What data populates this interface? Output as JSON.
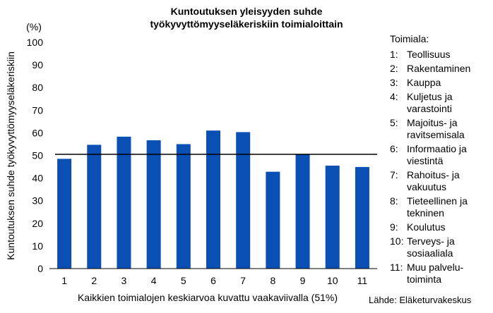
{
  "chart_data": {
    "type": "bar",
    "title_lines": [
      "Kuntoutuksen yleisyyden suhde",
      "työkyvyttömyyseläkeriskiin toimialoittain"
    ],
    "ylabel": "Kuntoutuksen suhde työkyvyttömyyseläkeriskiin",
    "yunit": "(%)",
    "xlabel": "Kaikkien toimialojen keskiarvoa kuvattu vaakaviivalla (51%)",
    "categories": [
      "1",
      "2",
      "3",
      "4",
      "5",
      "6",
      "7",
      "8",
      "9",
      "10",
      "11"
    ],
    "values": [
      48.5,
      54.7,
      58.3,
      56.7,
      55.0,
      61.0,
      60.3,
      42.8,
      50.5,
      45.5,
      44.9
    ],
    "reference_line": 50.5,
    "ylim": [
      0,
      100
    ],
    "yticks": [
      0,
      10,
      20,
      30,
      40,
      50,
      60,
      70,
      80,
      90,
      100
    ],
    "bar_color": "#0a4fb4",
    "grid": false
  },
  "legend": {
    "title": "Toimiala:",
    "items": [
      {
        "num": "1:",
        "label": "Teollisuus"
      },
      {
        "num": "2:",
        "label": "Rakentaminen"
      },
      {
        "num": "3:",
        "label": "Kauppa"
      },
      {
        "num": "4:",
        "label": "Kuljetus ja varastointi"
      },
      {
        "num": "5:",
        "label": "Majoitus- ja ravitsemisala"
      },
      {
        "num": "6:",
        "label": "Informaatio ja viestintä"
      },
      {
        "num": "7:",
        "label": "Rahoitus- ja vakuutus"
      },
      {
        "num": "8:",
        "label": "Tieteellinen ja tekninen"
      },
      {
        "num": "9:",
        "label": "Koulutus"
      },
      {
        "num": "10:",
        "label": "Terveys- ja sosiaaliala"
      },
      {
        "num": "11:",
        "label": "Muu palvelu-toiminta"
      }
    ]
  },
  "source": "Lähde: Eläketurvakeskus"
}
